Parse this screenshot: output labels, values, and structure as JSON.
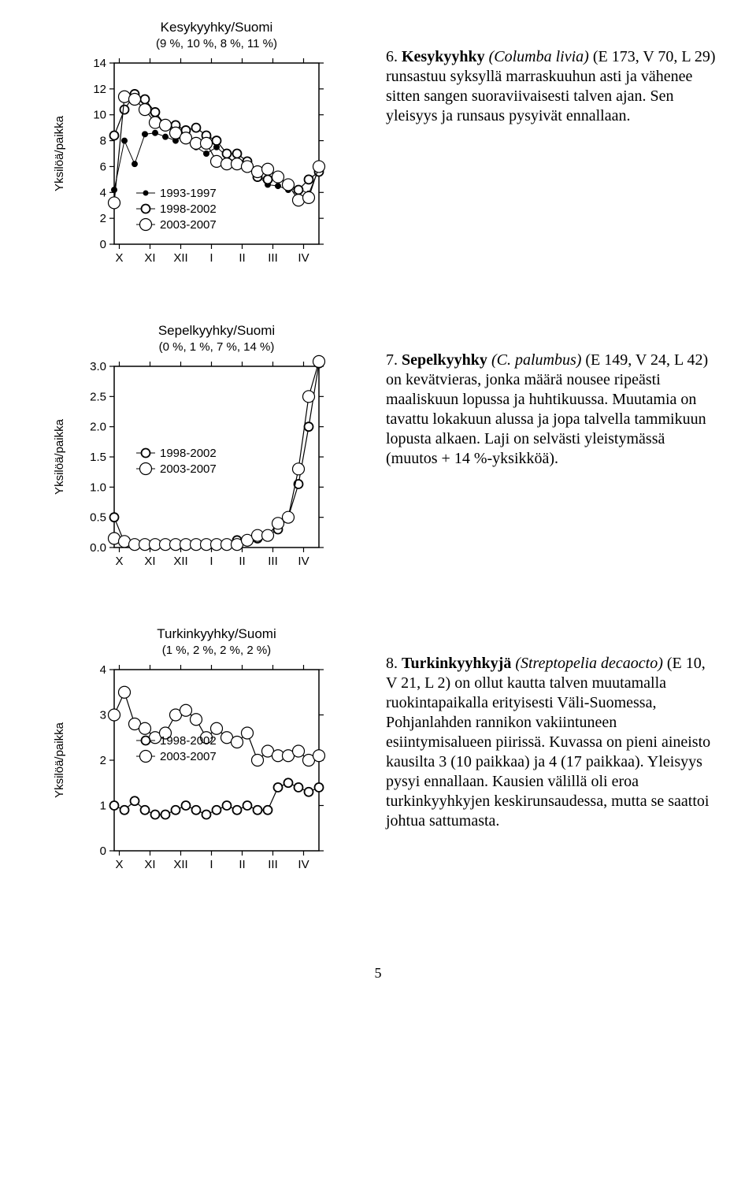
{
  "colors": {
    "background": "#ffffff",
    "axis": "#000000",
    "text": "#000000",
    "series_filled": "#000000",
    "series_thick_open": "#000000",
    "series_thin_open": "#000000"
  },
  "page_number": "5",
  "chart1": {
    "type": "line",
    "title": "Kesykyyhky/Suomi",
    "subtitle": "(9 %, 10 %, 8 %, 11 %)",
    "ylabel": "Yksilöä/paikka",
    "x_labels": [
      "X",
      "XI",
      "XII",
      "I",
      "II",
      "III",
      "IV"
    ],
    "y_ticks": [
      0,
      2,
      4,
      6,
      8,
      10,
      12,
      14
    ],
    "ylim": [
      0,
      14
    ],
    "legend": [
      {
        "label": "1993-1997",
        "marker": "filled"
      },
      {
        "label": "1998-2002",
        "marker": "thick"
      },
      {
        "label": "2003-2007",
        "marker": "thin"
      }
    ],
    "title_fontsize": 17,
    "label_fontsize": 15,
    "tick_fontsize": 15,
    "series": {
      "s1_1993_1997": [
        4.2,
        8.0,
        6.2,
        8.5,
        8.6,
        8.3,
        8.0,
        8.5,
        7.5,
        7.0,
        7.5,
        6.8,
        6.2,
        5.9,
        5.3,
        4.6,
        4.5,
        4.2,
        4.3,
        3.9,
        5.8
      ],
      "s2_1998_2002": [
        8.4,
        10.4,
        11.6,
        11.2,
        10.2,
        9.2,
        9.2,
        8.8,
        9.0,
        8.4,
        8.0,
        7.0,
        7.0,
        6.4,
        5.2,
        5.0,
        5.2,
        4.6,
        4.2,
        5.0,
        5.6
      ],
      "s3_2003_2007": [
        3.2,
        11.4,
        11.2,
        10.4,
        9.4,
        9.2,
        8.6,
        8.2,
        7.8,
        7.8,
        6.4,
        6.2,
        6.2,
        6.0,
        5.6,
        5.8,
        5.2,
        4.6,
        3.4,
        3.6,
        6.0
      ]
    }
  },
  "text1": {
    "num": "6. ",
    "bold": "Kesykyyhky",
    "italic": "(Columba livia)",
    "body": " (E 173, V 70, L 29) runsastuu syksyllä marraskuuhun asti ja vähenee sitten sangen suoraviivaisesti talven ajan. Sen yleisyys ja runsaus pysyivät ennallaan."
  },
  "chart2": {
    "type": "line",
    "title": "Sepelkyyhky/Suomi",
    "subtitle": "(0 %, 1 %, 7 %, 14 %)",
    "ylabel": "Yksilöä/paikka",
    "x_labels": [
      "X",
      "XI",
      "XII",
      "I",
      "II",
      "III",
      "IV"
    ],
    "y_ticks": [
      0.0,
      0.5,
      1.0,
      1.5,
      2.0,
      2.5,
      3.0
    ],
    "ylim": [
      0.0,
      3.0
    ],
    "legend": [
      {
        "label": "1998-2002",
        "marker": "thick"
      },
      {
        "label": "2003-2007",
        "marker": "thin"
      }
    ],
    "title_fontsize": 17,
    "label_fontsize": 15,
    "tick_fontsize": 15,
    "series": {
      "s2_1998_2002": [
        0.5,
        0.08,
        0.05,
        0.05,
        0.05,
        0.05,
        0.05,
        0.05,
        0.05,
        0.05,
        0.05,
        0.05,
        0.12,
        0.12,
        0.15,
        0.2,
        0.3,
        0.5,
        1.05,
        2.0,
        3.05
      ],
      "s3_2003_2007": [
        0.15,
        0.1,
        0.05,
        0.05,
        0.05,
        0.05,
        0.05,
        0.05,
        0.05,
        0.05,
        0.05,
        0.05,
        0.05,
        0.12,
        0.2,
        0.2,
        0.4,
        0.5,
        1.3,
        2.5,
        3.08
      ]
    }
  },
  "text2": {
    "num": "7. ",
    "bold": "Sepelkyyhky",
    "italic": "(C. palumbus)",
    "body": " (E 149, V 24, L 42) on kevätvieras, jonka määrä nousee ripeästi maaliskuun lopussa ja huhtikuussa. Muutamia on tavattu lokakuun alussa ja jopa talvella tammikuun lopusta alkaen. Laji on selvästi yleistymässä (muutos + 14 %-yksikköä)."
  },
  "chart3": {
    "type": "line",
    "title": "Turkinkyyhky/Suomi",
    "subtitle": "(1 %, 2 %, 2 %, 2 %)",
    "ylabel": "Yksilöä/paikka",
    "x_labels": [
      "X",
      "XI",
      "XII",
      "I",
      "II",
      "III",
      "IV"
    ],
    "y_ticks": [
      0,
      1,
      2,
      3,
      4
    ],
    "ylim": [
      0,
      4
    ],
    "legend": [
      {
        "label": "1998-2002",
        "marker": "thick"
      },
      {
        "label": "2003-2007",
        "marker": "thin"
      }
    ],
    "title_fontsize": 17,
    "label_fontsize": 15,
    "tick_fontsize": 15,
    "series": {
      "s2_1998_2002": [
        1.0,
        0.9,
        1.1,
        0.9,
        0.8,
        0.8,
        0.9,
        1.0,
        0.9,
        0.8,
        0.9,
        1.0,
        0.9,
        1.0,
        0.9,
        0.9,
        1.4,
        1.5,
        1.4,
        1.3,
        1.4
      ],
      "s3_2003_2007": [
        3.0,
        3.5,
        2.8,
        2.7,
        2.5,
        2.6,
        3.0,
        3.1,
        2.9,
        2.5,
        2.7,
        2.5,
        2.4,
        2.6,
        2.0,
        2.2,
        2.1,
        2.1,
        2.2,
        2.0,
        2.1
      ]
    }
  },
  "text3": {
    "num": "8. ",
    "bold": "Turkinkyyhkyjä",
    "italic": "(Streptopelia decaocto)",
    "body": " (E 10, V 21, L 2) on ollut kautta talven muutamalla ruokintapaikalla erityisesti Väli-Suomessa, Pohjanlahden rannikon vakiintuneen esiintymisalueen piirissä. Kuvassa on pieni aineisto kausilta 3 (10 paikkaa) ja 4 (17 paikkaa). Yleisyys pysyi ennallaan. Kausien välillä oli eroa turkinkyyhkyjen keskirunsaudessa, mutta se saattoi johtua sattumasta."
  }
}
